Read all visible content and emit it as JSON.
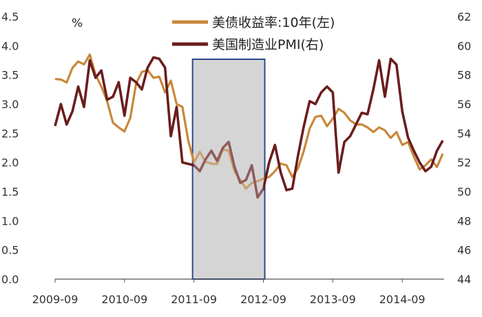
{
  "chart_data": {
    "type": "line",
    "unit_label": "%",
    "x_ticks": [
      "2009-09",
      "2010-09",
      "2011-09",
      "2012-09",
      "2013-09",
      "2014-09"
    ],
    "left_axis": {
      "ylim": [
        0.0,
        4.5
      ],
      "ticks": [
        "0.0",
        "0.5",
        "1.0",
        "1.5",
        "2.0",
        "2.5",
        "3.0",
        "3.5",
        "4.0",
        "4.5"
      ]
    },
    "right_axis": {
      "ylim": [
        44,
        62
      ],
      "ticks": [
        "44",
        "46",
        "48",
        "50",
        "52",
        "54",
        "56",
        "58",
        "60",
        "62"
      ]
    },
    "legend_position": "top-center",
    "highlight_band": {
      "from_month": 24,
      "to_month": 36,
      "fill": "#d4d4d4",
      "border": "#2b4a8b"
    },
    "series": [
      {
        "name": "美债收益率:10年(左)",
        "axis": "left",
        "color": "#c8873a",
        "x_month_index": [
          0,
          1,
          2,
          3,
          4,
          5,
          6,
          7,
          8,
          9,
          10,
          11,
          12,
          13,
          14,
          15,
          16,
          17,
          18,
          19,
          20,
          21,
          22,
          23,
          24,
          25,
          26,
          27,
          28,
          29,
          30,
          31,
          32,
          33,
          34,
          35,
          36,
          37,
          38,
          39,
          40,
          41,
          42,
          43,
          44,
          45,
          46,
          47,
          48,
          49,
          50,
          51,
          52,
          53,
          54,
          55,
          56,
          57,
          58,
          59,
          60,
          61,
          62,
          63,
          64,
          65,
          66,
          67
        ],
        "values": [
          3.43,
          3.42,
          3.37,
          3.62,
          3.73,
          3.68,
          3.85,
          3.5,
          3.3,
          3.05,
          2.68,
          2.6,
          2.53,
          2.76,
          3.35,
          3.55,
          3.58,
          3.45,
          3.47,
          3.2,
          3.4,
          3.0,
          2.95,
          2.38,
          2.0,
          2.18,
          2.01,
          1.98,
          1.97,
          2.22,
          2.2,
          1.85,
          1.7,
          1.55,
          1.65,
          1.68,
          1.72,
          1.75,
          1.85,
          1.98,
          1.95,
          1.75,
          1.9,
          2.2,
          2.58,
          2.78,
          2.8,
          2.62,
          2.75,
          2.92,
          2.85,
          2.72,
          2.65,
          2.65,
          2.6,
          2.52,
          2.6,
          2.55,
          2.42,
          2.52,
          2.3,
          2.35,
          2.1,
          1.88,
          1.95,
          2.05,
          1.92,
          2.15
        ]
      },
      {
        "name": "美国制造业PMI(右)",
        "axis": "right",
        "color": "#6b1d1d",
        "x_month_index": [
          0,
          1,
          2,
          3,
          4,
          5,
          6,
          7,
          8,
          9,
          10,
          11,
          12,
          13,
          14,
          15,
          16,
          17,
          18,
          19,
          20,
          21,
          22,
          23,
          24,
          25,
          26,
          27,
          28,
          29,
          30,
          31,
          32,
          33,
          34,
          35,
          36,
          37,
          38,
          39,
          40,
          41,
          42,
          43,
          44,
          45,
          46,
          47,
          48,
          49,
          50,
          51,
          52,
          53,
          54,
          55,
          56,
          57,
          58,
          59,
          60,
          61,
          62,
          63,
          64,
          65,
          66,
          67
        ],
        "values": [
          54.5,
          56.0,
          54.6,
          55.5,
          57.2,
          55.8,
          59.0,
          57.8,
          58.3,
          56.3,
          56.5,
          57.5,
          55.2,
          57.8,
          57.5,
          57.0,
          58.5,
          59.2,
          59.1,
          58.5,
          53.8,
          55.8,
          52.0,
          51.9,
          51.8,
          51.4,
          52.2,
          52.8,
          52.1,
          53.0,
          53.4,
          51.7,
          50.6,
          50.8,
          51.8,
          49.6,
          50.2,
          52.0,
          53.2,
          51.3,
          50.1,
          50.2,
          52.5,
          54.5,
          56.2,
          56.0,
          56.8,
          57.2,
          56.8,
          51.3,
          53.4,
          53.8,
          54.6,
          55.4,
          55.3,
          57.0,
          59.0,
          56.5,
          59.1,
          58.7,
          55.5,
          53.7,
          52.8,
          52.0,
          51.4,
          51.7,
          52.8,
          53.5
        ]
      }
    ]
  }
}
